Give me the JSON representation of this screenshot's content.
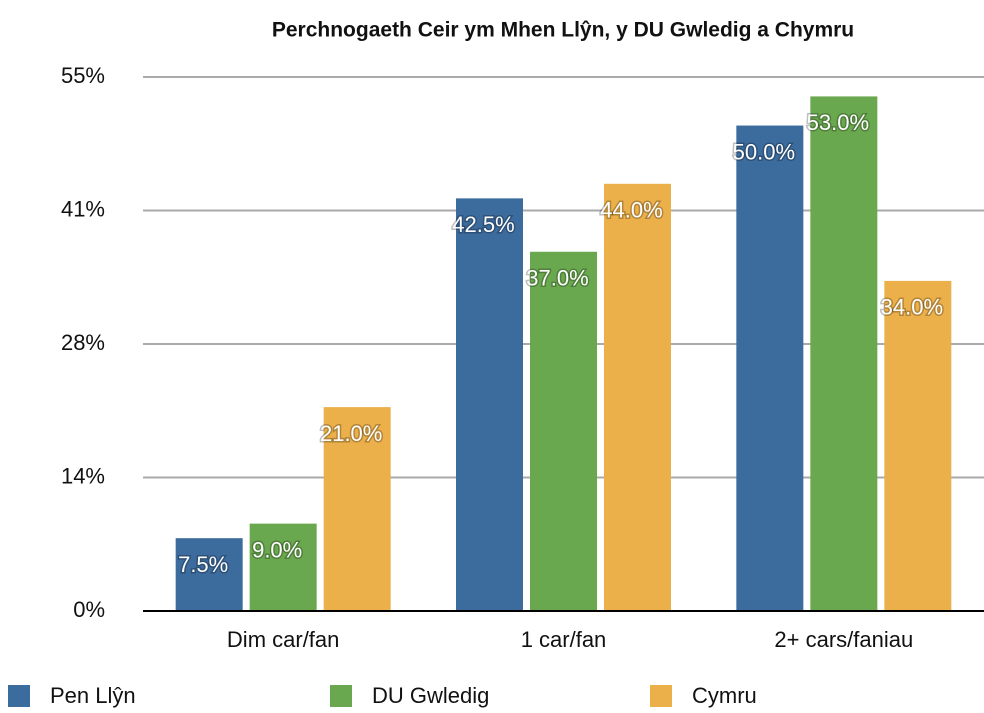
{
  "chart_data": {
    "type": "bar",
    "title": "Perchnogaeth Ceir ym Mhen Llŷn, y DU Gwledig a Chymru",
    "categories": [
      "Dim car/fan",
      "1 car/fan",
      "2+ cars/faniau"
    ],
    "series": [
      {
        "name": "Pen Llŷn",
        "color": "#3c6b9e",
        "values": [
          7.5,
          42.5,
          50.0
        ],
        "value_labels": [
          "7.5%",
          "42.5%",
          "50.0%"
        ]
      },
      {
        "name": "DU Gwledig",
        "color": "#6aa84f",
        "values": [
          9.0,
          37.0,
          53.0
        ],
        "value_labels": [
          "9.0%",
          "37.0%",
          "53.0%"
        ]
      },
      {
        "name": "Cymru",
        "color": "#ecb04a",
        "values": [
          21.0,
          44.0,
          34.0
        ],
        "value_labels": [
          "21.0%",
          "44.0%",
          "34.0%"
        ]
      }
    ],
    "ylim": [
      0,
      55
    ],
    "yticks": [
      {
        "value": 0,
        "label": "0%"
      },
      {
        "value": 13.75,
        "label": "14%"
      },
      {
        "value": 27.5,
        "label": "28%"
      },
      {
        "value": 41.25,
        "label": "41%"
      },
      {
        "value": 55,
        "label": "55%"
      }
    ],
    "grid": true,
    "legend": "bottom"
  }
}
